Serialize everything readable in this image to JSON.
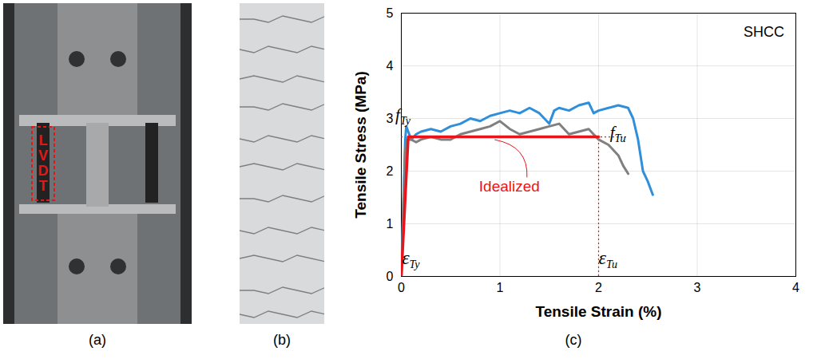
{
  "chart_data": {
    "type": "line",
    "title": "SHCC",
    "xlabel": "Tensile Strain (%)",
    "ylabel": "Tensile Stress (MPa)",
    "xlim": [
      0,
      4
    ],
    "xticks": [
      0,
      1,
      2,
      3,
      4
    ],
    "ylim": [
      0,
      5
    ],
    "yticks": [
      0,
      1,
      2,
      3,
      4,
      5
    ],
    "grid": true,
    "series": [
      {
        "color": "#2f8fdb",
        "line_style": "solid",
        "x": [
          0,
          0.02,
          0.04,
          0.05,
          0.07,
          0.1,
          0.15,
          0.2,
          0.3,
          0.4,
          0.5,
          0.6,
          0.7,
          0.8,
          0.9,
          1.0,
          1.1,
          1.2,
          1.3,
          1.4,
          1.5,
          1.55,
          1.6,
          1.7,
          1.8,
          1.9,
          1.95,
          2.0,
          2.1,
          2.2,
          2.3,
          2.35,
          2.4,
          2.45,
          2.5,
          2.55
        ],
        "values": [
          0,
          1.4,
          2.6,
          2.85,
          2.75,
          2.6,
          2.7,
          2.75,
          2.8,
          2.75,
          2.85,
          2.9,
          3.0,
          2.95,
          3.05,
          3.1,
          3.15,
          3.1,
          3.2,
          3.1,
          2.9,
          3.15,
          3.2,
          3.15,
          3.25,
          3.3,
          3.1,
          3.15,
          3.2,
          3.25,
          3.2,
          3.0,
          2.6,
          2.0,
          1.8,
          1.55
        ]
      },
      {
        "color": "#808080",
        "line_style": "solid",
        "x": [
          0,
          0.02,
          0.04,
          0.06,
          0.1,
          0.15,
          0.2,
          0.3,
          0.4,
          0.5,
          0.6,
          0.7,
          0.8,
          0.9,
          1.0,
          1.1,
          1.2,
          1.3,
          1.4,
          1.5,
          1.6,
          1.7,
          1.8,
          1.9,
          2.0,
          2.1,
          2.2,
          2.25,
          2.3
        ],
        "values": [
          0,
          1.3,
          2.4,
          2.6,
          2.6,
          2.55,
          2.6,
          2.65,
          2.6,
          2.6,
          2.7,
          2.75,
          2.8,
          2.85,
          2.95,
          2.8,
          2.7,
          2.75,
          2.8,
          2.85,
          2.9,
          2.7,
          2.75,
          2.8,
          2.6,
          2.5,
          2.3,
          2.1,
          1.95
        ]
      },
      {
        "name": "Idealized",
        "color": "#e8141a",
        "line_style": "solid",
        "x": [
          0,
          0.07,
          2.0
        ],
        "values": [
          0,
          2.65,
          2.65
        ]
      }
    ],
    "reference_lines": [
      {
        "axis": "y",
        "value": 2.65,
        "from": 0,
        "to": 2.3,
        "color": "#e8141a",
        "line_style": "dotted"
      },
      {
        "axis": "x",
        "value": 2.0,
        "from": 0,
        "to": 2.65,
        "color": "#e8141a",
        "line_style": "dotted"
      }
    ],
    "annotations": [
      {
        "text": "f",
        "subscript": "Ty",
        "x": 0.02,
        "y": 2.95
      },
      {
        "text": "f",
        "subscript": "Tu",
        "x": 2.2,
        "y": 2.62
      },
      {
        "text": "ε",
        "subscript": "Ty",
        "x": 0.1,
        "y": 0.22
      },
      {
        "text": "ε",
        "subscript": "Tu",
        "x": 2.1,
        "y": 0.22
      }
    ],
    "series_label": {
      "series": "Idealized",
      "x": 1.1,
      "y": 1.6,
      "target": [
        0.95,
        2.62
      ]
    }
  },
  "figure": {
    "panel_labels": [
      "(a)",
      "(b)",
      "(c)"
    ],
    "photo_text": "LVDT"
  }
}
